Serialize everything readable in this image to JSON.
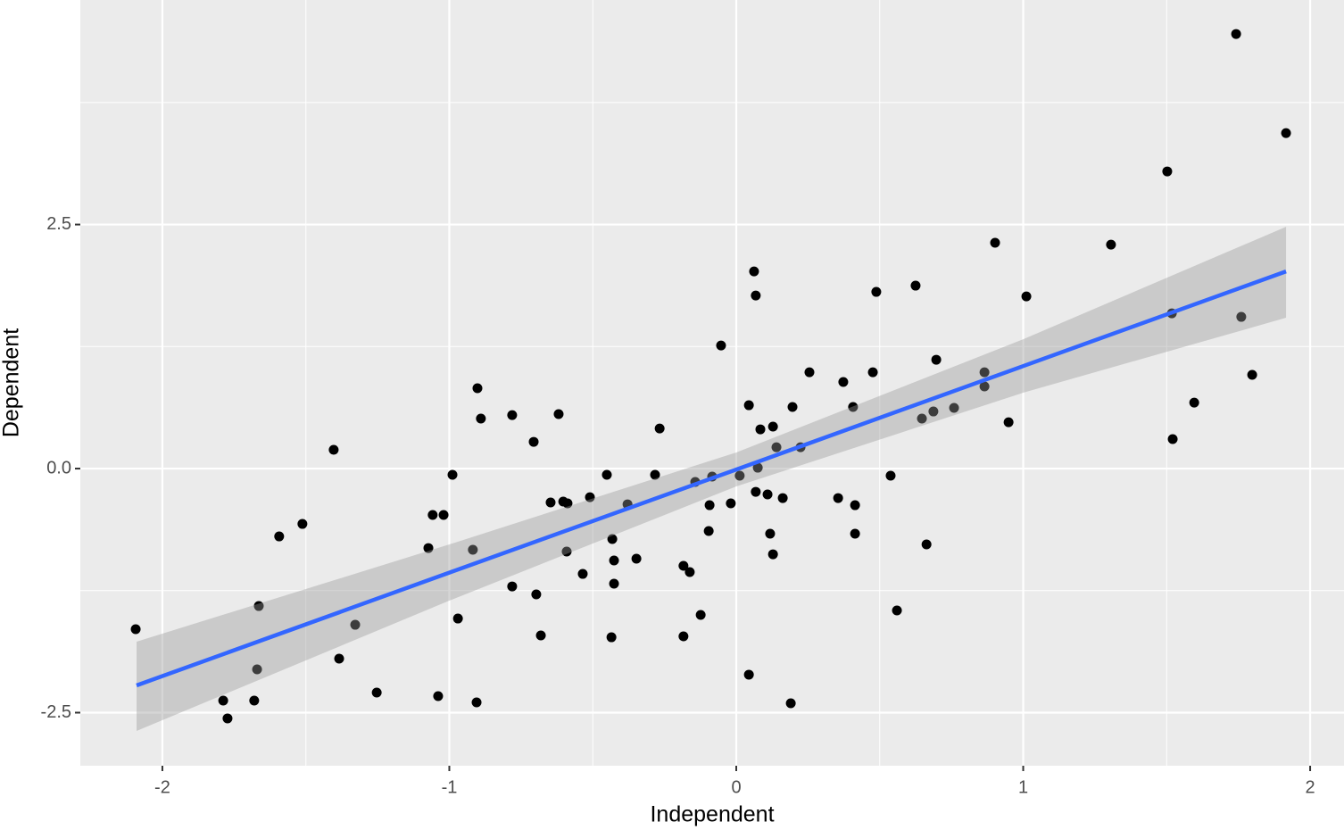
{
  "chart_data": {
    "type": "scatter",
    "x_label": "Independent",
    "y_label": "Dependent",
    "xlim": [
      -2.286,
      2.118
    ],
    "ylim": [
      -3.044,
      4.8
    ],
    "xticks": [
      -2,
      -1,
      0,
      1,
      2
    ],
    "yticks": [
      -2.5,
      {
        "value": 0,
        "label": "0.0"
      },
      2.5
    ],
    "minor_xticks": [
      -1.5,
      -0.5,
      0.5,
      1.5
    ],
    "minor_yticks": [
      -1.25,
      1.25,
      3.75
    ],
    "grid": true,
    "panel_color": "#ebebeb",
    "grid_color": "#ffffff",
    "series": [
      {
        "color": "#000000",
        "x": [
          1.742,
          1.916,
          1.502,
          0.902,
          1.306,
          0.062,
          0.068,
          0.488,
          0.625,
          1.011,
          1.518,
          1.76,
          -0.053,
          0.697,
          0.255,
          0.476,
          0.865,
          1.798,
          0.373,
          0.865,
          -0.902,
          1.596,
          0.044,
          0.407,
          0.196,
          0.759,
          0.687,
          -0.781,
          -0.619,
          0.647,
          -0.89,
          0.949,
          -0.267,
          0.084,
          0.128,
          -0.706,
          1.521,
          0.14,
          0.224,
          -1.403,
          0.075,
          -0.989,
          -0.451,
          -0.283,
          0.012,
          -0.084,
          0.538,
          -0.143,
          0.068,
          0.109,
          0.162,
          -0.51,
          0.355,
          -0.647,
          -0.603,
          -0.588,
          -0.379,
          -0.093,
          -0.019,
          0.414,
          -1.058,
          -1.02,
          -1.512,
          -1.593,
          -0.096,
          0.118,
          0.414,
          -0.432,
          0.663,
          -1.073,
          -0.918,
          -0.591,
          0.128,
          -0.426,
          -0.348,
          -0.184,
          -0.162,
          -0.535,
          -0.426,
          -0.781,
          -0.697,
          -1.664,
          0.56,
          -0.124,
          -0.97,
          -1.328,
          -2.093,
          -0.681,
          -0.184,
          -0.435,
          -1.384,
          -1.67,
          0.044,
          -1.253,
          -1.039,
          -1.788,
          -1.68,
          -0.905,
          0.19,
          -1.773
        ],
        "values": [
          4.452,
          3.437,
          3.044,
          2.313,
          2.294,
          2.02,
          1.773,
          1.81,
          1.874,
          1.764,
          1.59,
          1.554,
          1.261,
          1.115,
          0.987,
          0.987,
          0.987,
          0.96,
          0.887,
          0.841,
          0.823,
          0.676,
          0.649,
          0.631,
          0.631,
          0.622,
          0.585,
          0.548,
          0.558,
          0.512,
          0.512,
          0.475,
          0.411,
          0.402,
          0.43,
          0.274,
          0.302,
          0.219,
          0.219,
          0.192,
          0.009,
          -0.064,
          -0.064,
          -0.064,
          -0.073,
          -0.082,
          -0.073,
          -0.137,
          -0.238,
          -0.265,
          -0.302,
          -0.293,
          -0.302,
          -0.347,
          -0.338,
          -0.356,
          -0.366,
          -0.375,
          -0.356,
          -0.375,
          -0.475,
          -0.475,
          -0.567,
          -0.695,
          -0.64,
          -0.667,
          -0.667,
          -0.722,
          -0.777,
          -0.814,
          -0.832,
          -0.85,
          -0.878,
          -0.941,
          -0.923,
          -0.996,
          -1.06,
          -1.079,
          -1.179,
          -1.207,
          -1.289,
          -1.408,
          -1.453,
          -1.499,
          -1.536,
          -1.6,
          -1.645,
          -1.709,
          -1.718,
          -1.728,
          -1.947,
          -2.057,
          -2.111,
          -2.294,
          -2.331,
          -2.377,
          -2.377,
          -2.395,
          -2.404,
          -2.559
        ]
      }
    ],
    "fit": {
      "color": "#3366ff",
      "band_color": "#999999",
      "x": [
        -2.09,
        -1,
        0,
        1,
        1.916
      ],
      "y": [
        -2.221,
        -1.066,
        -0.01,
        1.05,
        2.02
      ],
      "lower": [
        -2.687,
        -1.353,
        -0.183,
        0.777,
        1.545
      ],
      "upper": [
        -1.773,
        -0.777,
        0.165,
        1.325,
        2.477
      ]
    }
  }
}
